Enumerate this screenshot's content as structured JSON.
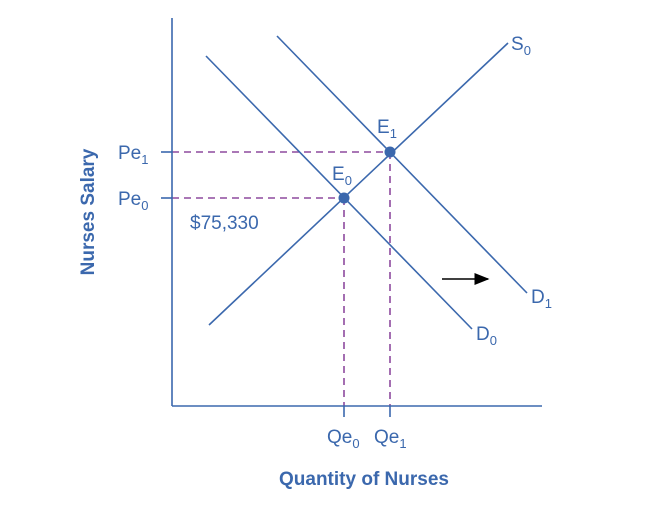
{
  "colors": {
    "curve": "#3b68ad",
    "guide": "#8e4a9e",
    "arrow": "#000000"
  },
  "axes": {
    "x_title": "Quantity of Nurses",
    "y_title": "Nurses Salary"
  },
  "curves": {
    "supply": {
      "name": "S",
      "sub": "0"
    },
    "demand0": {
      "name": "D",
      "sub": "0"
    },
    "demand1": {
      "name": "D",
      "sub": "1"
    }
  },
  "equilibria": {
    "e0": {
      "name": "E",
      "sub": "0"
    },
    "e1": {
      "name": "E",
      "sub": "1"
    }
  },
  "price_labels": {
    "pe0": {
      "name": "Pe",
      "sub": "0"
    },
    "pe1": {
      "name": "Pe",
      "sub": "1"
    }
  },
  "quantity_labels": {
    "qe0": {
      "name": "Qe",
      "sub": "0"
    },
    "qe1": {
      "name": "Qe",
      "sub": "1"
    }
  },
  "annotation": "$75,330",
  "shift_arrow": "demand shifts right"
}
